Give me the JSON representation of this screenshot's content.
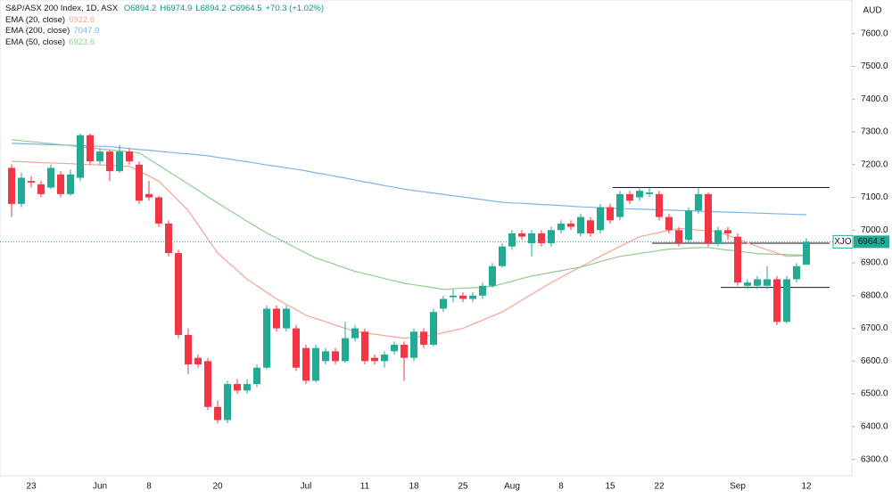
{
  "chart_data": {
    "type": "candlestick",
    "title": "S&P/ASX 200 Index, 1D, ASX",
    "ohlc_legend": [
      "O6894.2",
      "H6974.9",
      "L6894.2",
      "C6964.5",
      "+70.3 (+1.02%)"
    ],
    "currency": "AUD",
    "symbol": "XJO",
    "up_color": "#22ab94",
    "down_color": "#f23645",
    "categories": [
      null,
      null,
      "23",
      null,
      null,
      null,
      null,
      null,
      null,
      "Jun",
      null,
      null,
      null,
      null,
      "8",
      null,
      null,
      null,
      null,
      null,
      null,
      "20",
      null,
      null,
      null,
      null,
      null,
      null,
      null,
      null,
      "Jul",
      null,
      null,
      null,
      null,
      null,
      "11",
      null,
      null,
      null,
      null,
      "18",
      null,
      null,
      null,
      null,
      "25",
      null,
      null,
      null,
      null,
      "Aug",
      null,
      null,
      null,
      null,
      "8",
      null,
      null,
      null,
      null,
      "15",
      null,
      null,
      null,
      null,
      "22",
      null,
      null,
      null,
      null,
      null,
      null,
      null,
      "Sep",
      null,
      null,
      null,
      null,
      null,
      null,
      "12"
    ],
    "open": [
      7190,
      7080,
      7150,
      7140,
      7130,
      7170,
      7110,
      7160,
      7290,
      7210,
      7240,
      7180,
      7240,
      7200,
      7110,
      7100,
      7020,
      6930,
      6680,
      6610,
      6600,
      6460,
      6420,
      6530,
      6510,
      6530,
      6580,
      6760,
      6700,
      6700,
      6640,
      6540,
      6600,
      6630,
      6600,
      6670,
      6690,
      6610,
      6600,
      6630,
      6650,
      6610,
      6690,
      6650,
      6760,
      6795,
      6800,
      6790,
      6800,
      6830,
      6890,
      6950,
      6990,
      6960,
      6990,
      6960,
      7000,
      7020,
      6990,
      7030,
      7000,
      7070,
      7040,
      7110,
      7100,
      7110,
      7110,
      7040,
      7000,
      6970,
      7060,
      7110,
      6960,
      7000,
      6980,
      6830,
      6830,
      6830,
      6850,
      6720,
      6850,
      6894.2
    ],
    "high": [
      7200,
      7175,
      7165,
      7150,
      7200,
      7180,
      7185,
      7295,
      7295,
      7250,
      7245,
      7260,
      7250,
      7210,
      7150,
      7105,
      7030,
      6940,
      6700,
      6620,
      6610,
      6480,
      6540,
      6545,
      6545,
      6590,
      6770,
      6770,
      6770,
      6710,
      6650,
      6650,
      6640,
      6640,
      6720,
      6710,
      6700,
      6620,
      6630,
      6660,
      6660,
      6700,
      6700,
      6760,
      6800,
      6820,
      6810,
      6810,
      6840,
      6900,
      6960,
      7000,
      7000,
      7000,
      7000,
      7010,
      7030,
      7030,
      7050,
      7040,
      7080,
      7080,
      7120,
      7120,
      7130,
      7130,
      7120,
      7050,
      7010,
      7070,
      7130,
      7115,
      7010,
      7010,
      6990,
      6850,
      6860,
      6890,
      6860,
      6860,
      6900,
      6974.9
    ],
    "low": [
      7040,
      7070,
      7130,
      7100,
      7125,
      7100,
      7105,
      7150,
      7200,
      7200,
      7150,
      7175,
      7200,
      7080,
      7090,
      7010,
      6920,
      6670,
      6560,
      6580,
      6450,
      6410,
      6410,
      6500,
      6500,
      6520,
      6575,
      6690,
      6690,
      6570,
      6530,
      6535,
      6590,
      6590,
      6595,
      6660,
      6590,
      6590,
      6580,
      6620,
      6540,
      6600,
      6640,
      6645,
      6750,
      6780,
      6780,
      6780,
      6790,
      6825,
      6885,
      6940,
      6970,
      6920,
      6950,
      6950,
      6990,
      7000,
      6980,
      6980,
      6990,
      7020,
      7030,
      7080,
      7090,
      7100,
      7030,
      6990,
      6950,
      6960,
      7050,
      6950,
      6950,
      6970,
      6830,
      6820,
      6820,
      6820,
      6710,
      6715,
      6840,
      6894.2
    ],
    "close": [
      7080,
      7160,
      7145,
      7110,
      7190,
      7110,
      7170,
      7290,
      7210,
      7240,
      7180,
      7240,
      7210,
      7090,
      7100,
      7020,
      6930,
      6680,
      6590,
      6590,
      6460,
      6420,
      6530,
      6510,
      6530,
      6580,
      6760,
      6700,
      6760,
      6580,
      6540,
      6640,
      6630,
      6600,
      6670,
      6700,
      6600,
      6600,
      6620,
      6650,
      6610,
      6690,
      6650,
      6750,
      6790,
      6800,
      6790,
      6800,
      6830,
      6890,
      6950,
      6990,
      6980,
      6990,
      6960,
      7000,
      7020,
      7010,
      7040,
      6990,
      7070,
      7030,
      7110,
      7090,
      7120,
      7115,
      7040,
      7000,
      6960,
      7060,
      7110,
      6960,
      7000,
      6990,
      6840,
      6840,
      6850,
      6850,
      6720,
      6850,
      6890,
      6964.5
    ],
    "series": [
      {
        "name": "EMA (20, close)",
        "color": "#f7a294",
        "value_label": "6922.6",
        "values": [
          7210,
          7209,
          7208,
          7206,
          7205,
          7204,
          7203,
          7201,
          7200,
          7199,
          7198,
          7196,
          7195,
          7180,
          7165,
          7150,
          7120,
          7090,
          7060,
          7017,
          6973,
          6930,
          6903,
          6877,
          6850,
          6830,
          6810,
          6790,
          6773,
          6757,
          6740,
          6730,
          6720,
          6710,
          6700,
          6690,
          6686,
          6682,
          6678,
          6674,
          6670,
          6673,
          6677,
          6680,
          6687,
          6693,
          6700,
          6713,
          6725,
          6738,
          6750,
          6768,
          6786,
          6804,
          6822,
          6840,
          6856,
          6872,
          6888,
          6904,
          6920,
          6935,
          6950,
          6965,
          6980,
          6986,
          6993,
          6999,
          7005,
          7003,
          7000,
          6998,
          6995,
          6984,
          6973,
          6961,
          6950,
          6940,
          6930,
          6920,
          6921,
          6922.6
        ]
      },
      {
        "name": "EMA (200, close)",
        "color": "#7db3e8",
        "value_label": "7047.0",
        "values": [
          7265,
          7264,
          7263,
          7262,
          7261,
          7260,
          7259,
          7258,
          7257,
          7256,
          7255,
          7252,
          7249,
          7246,
          7244,
          7241,
          7238,
          7235,
          7233,
          7230,
          7227,
          7222,
          7218,
          7213,
          7209,
          7204,
          7199,
          7195,
          7190,
          7186,
          7181,
          7175,
          7170,
          7164,
          7159,
          7153,
          7147,
          7142,
          7136,
          7131,
          7125,
          7121,
          7117,
          7113,
          7109,
          7105,
          7101,
          7097,
          7093,
          7089,
          7085,
          7083,
          7082,
          7080,
          7078,
          7077,
          7075,
          7073,
          7071,
          7070,
          7068,
          7067,
          7066,
          7065,
          7064,
          7063,
          7062,
          7061,
          7060,
          7059,
          7058,
          7057,
          7056,
          7055,
          7054,
          7053,
          7052,
          7051,
          7050,
          7049,
          7048,
          7047
        ]
      },
      {
        "name": "EMA (50, close)",
        "color": "#8fcc8f",
        "value_label": "6923.6",
        "values": [
          7276,
          7273,
          7270,
          7267,
          7264,
          7261,
          7258,
          7254,
          7251,
          7248,
          7245,
          7242,
          7239,
          7236,
          7217,
          7198,
          7179,
          7160,
          7141,
          7122,
          7102,
          7083,
          7064,
          7046,
          7027,
          7009,
          6991,
          6976,
          6961,
          6945,
          6930,
          6915,
          6905,
          6895,
          6884,
          6874,
          6867,
          6860,
          6852,
          6845,
          6838,
          6833,
          6829,
          6824,
          6819,
          6821,
          6823,
          6824,
          6826,
          6828,
          6836,
          6844,
          6852,
          6860,
          6865,
          6871,
          6876,
          6882,
          6887,
          6895,
          6904,
          6912,
          6920,
          6924,
          6929,
          6933,
          6938,
          6942,
          6943,
          6945,
          6946,
          6947,
          6943,
          6939,
          6936,
          6932,
          6928,
          6927,
          6926,
          6925,
          6924,
          6923.6
        ]
      }
    ],
    "levels": [
      7130,
      6960,
      6825
    ],
    "ylim": [
      6250,
      7700
    ],
    "yticks": [
      {
        "value": 6300,
        "label": "6300.0"
      },
      {
        "value": 6400,
        "label": "6400.0"
      },
      {
        "value": 6500,
        "label": "6500.0"
      },
      {
        "value": 6600,
        "label": "6600.0"
      },
      {
        "value": 6700,
        "label": "6700.0"
      },
      {
        "value": 6800,
        "label": "6800.0"
      },
      {
        "value": 6900,
        "label": "6900.0"
      },
      {
        "value": 7000,
        "label": "7000.0"
      },
      {
        "value": 7100,
        "label": "7100.0"
      },
      {
        "value": 7200,
        "label": "7200.0"
      },
      {
        "value": 7300,
        "label": "7300.0"
      },
      {
        "value": 7400,
        "label": "7400.0"
      },
      {
        "value": 7500,
        "label": "7500.0"
      },
      {
        "value": 7600,
        "label": "7600.0"
      }
    ]
  }
}
